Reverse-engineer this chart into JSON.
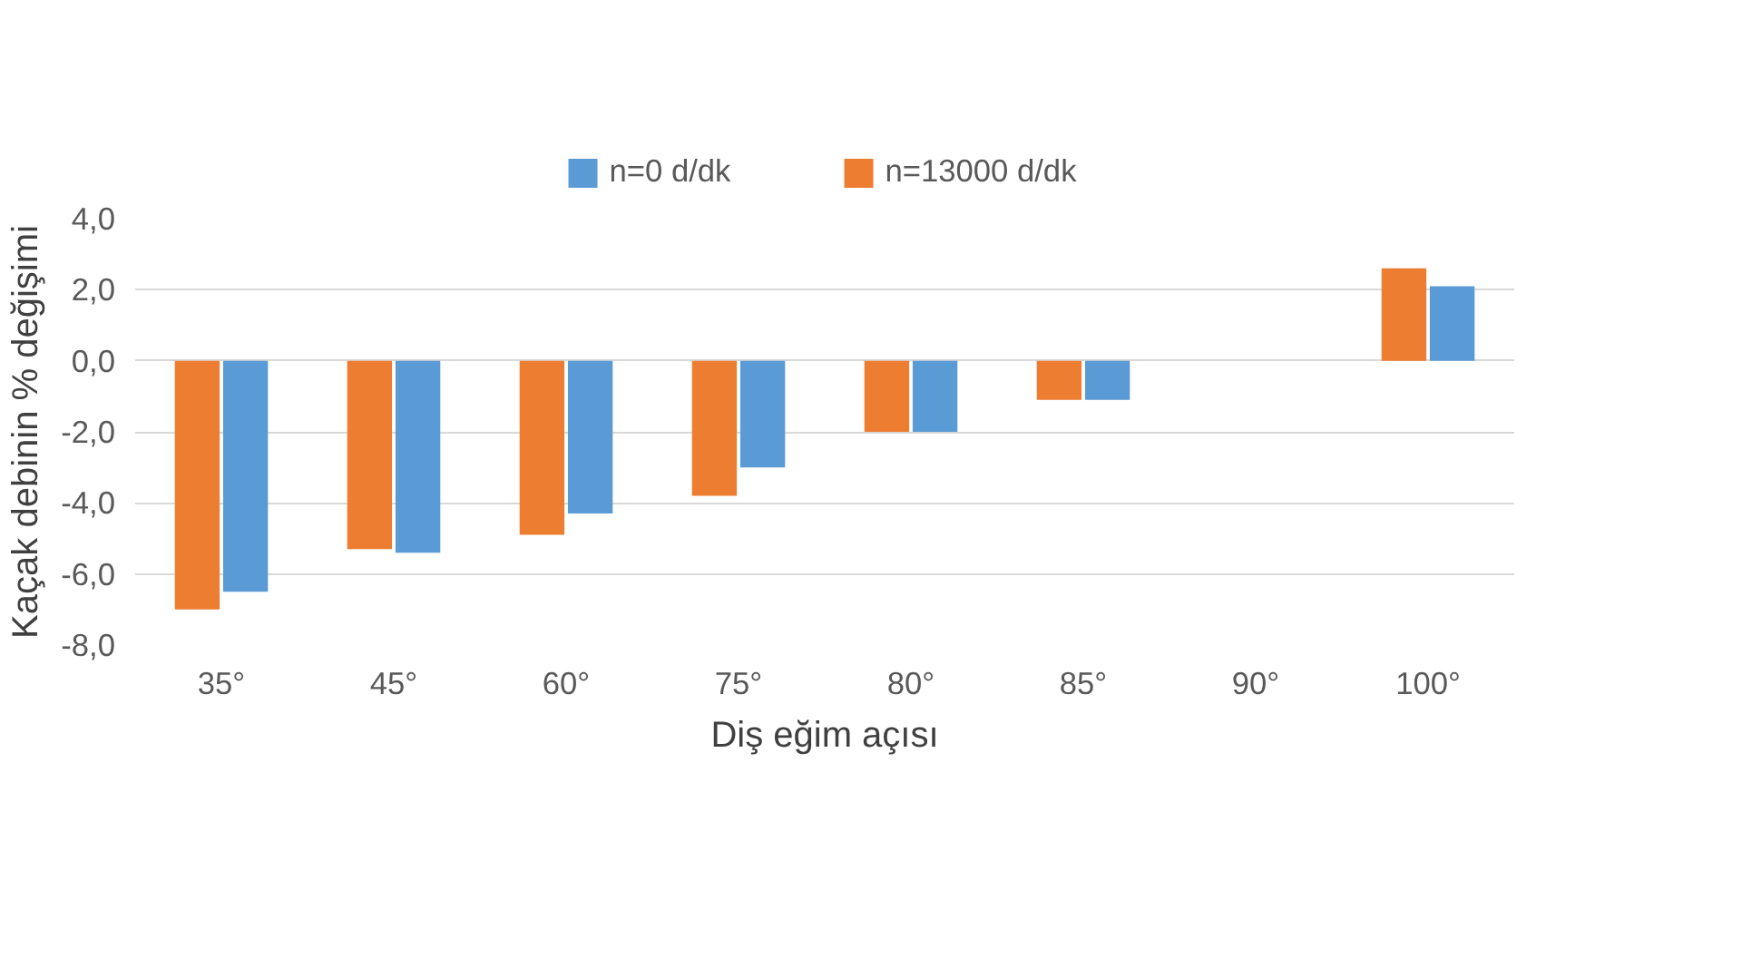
{
  "chart_data": {
    "type": "bar",
    "xlabel": "Diş eğim açısı",
    "ylabel": "Kaçak debinin % değişimi",
    "categories": [
      "35°",
      "45°",
      "60°",
      "75°",
      "80°",
      "85°",
      "90°",
      "100°"
    ],
    "series": [
      {
        "name": "n=13000 d/dk",
        "color": "#ed7d31",
        "values": [
          -7.0,
          -5.3,
          -4.9,
          -3.8,
          -2.0,
          -1.1,
          0,
          2.6
        ]
      },
      {
        "name": "n=0 d/dk",
        "color": "#5b9bd5",
        "values": [
          -6.5,
          -5.4,
          -4.3,
          -3.0,
          -2.0,
          -1.1,
          0,
          2.1
        ]
      }
    ],
    "ylim": [
      -8,
      4
    ],
    "yticks": [
      {
        "value": -8,
        "label": "-8,0"
      },
      {
        "value": -6,
        "label": "-6,0"
      },
      {
        "value": -4,
        "label": "-4,0"
      },
      {
        "value": -2,
        "label": "-2,0"
      },
      {
        "value": 0,
        "label": "0,0"
      },
      {
        "value": 2,
        "label": "2,0"
      },
      {
        "value": 4,
        "label": "4,0"
      }
    ],
    "grid": "y",
    "legend": "top"
  }
}
